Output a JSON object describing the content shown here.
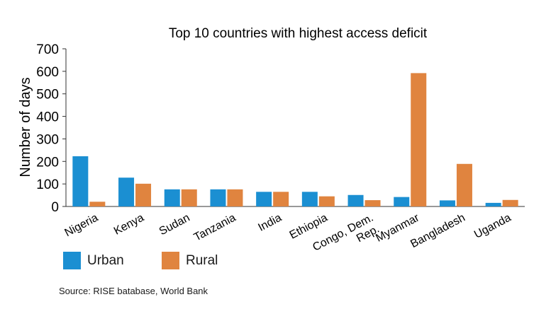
{
  "chart_data": {
    "type": "bar",
    "title": "Top 10 countries with highest access deficit",
    "ylabel": "Number of days",
    "xlabel": "",
    "ylim": [
      0,
      700
    ],
    "yticks": [
      0,
      100,
      200,
      300,
      400,
      500,
      600,
      700
    ],
    "grid": false,
    "legend_position": "bottom-left",
    "categories": [
      [
        "Nigeria"
      ],
      [
        "Kenya"
      ],
      [
        "Sudan"
      ],
      [
        "Tanzania"
      ],
      [
        "India"
      ],
      [
        "Ethiopia"
      ],
      [
        "Congo, Dem.",
        "Rep."
      ],
      [
        "Myanmar"
      ],
      [
        "Bangladesh"
      ],
      [
        "Uganda"
      ]
    ],
    "series": [
      {
        "name": "Urban",
        "color": "#1b8fd2",
        "values": [
          223,
          128,
          76,
          76,
          65,
          65,
          51,
          42,
          27,
          16
        ]
      },
      {
        "name": "Rural",
        "color": "#e0843f",
        "values": [
          21,
          101,
          76,
          76,
          65,
          45,
          28,
          592,
          189,
          29
        ]
      }
    ]
  },
  "source": "Source: RISE batabase, World Bank"
}
